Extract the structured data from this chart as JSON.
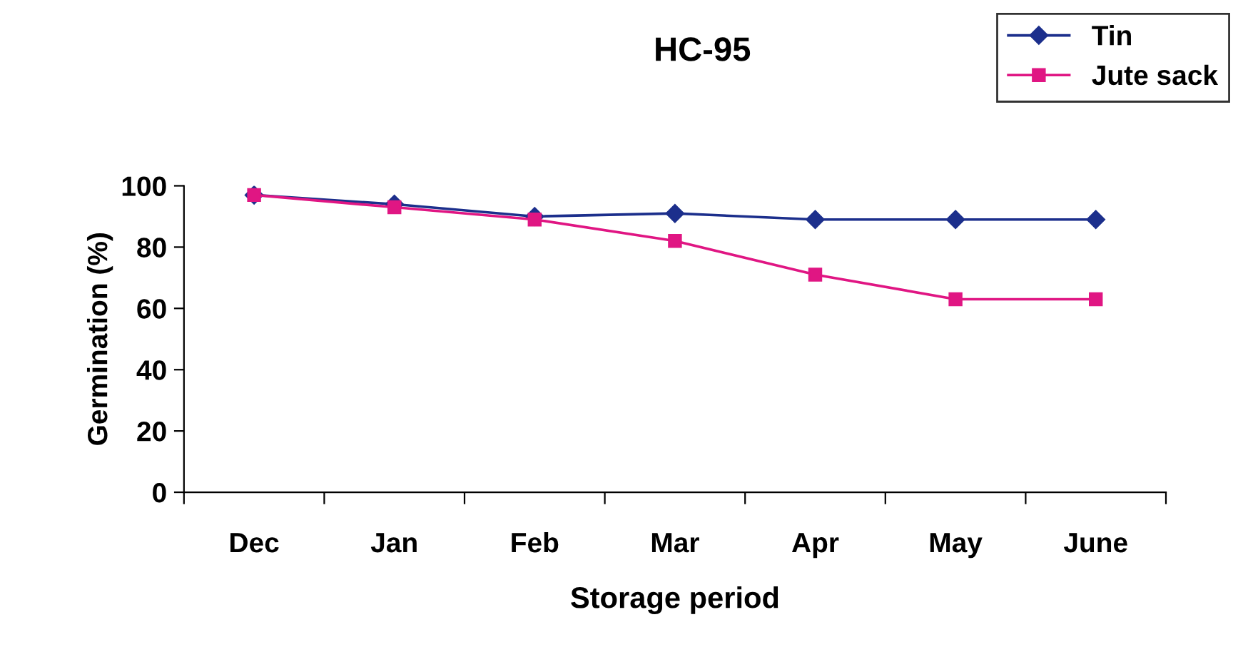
{
  "chart_data": {
    "type": "line",
    "title": "HC-95",
    "xlabel": "Storage period",
    "ylabel": "Germination (%)",
    "categories": [
      "Dec",
      "Jan",
      "Feb",
      "Mar",
      "Apr",
      "May",
      "June"
    ],
    "series": [
      {
        "name": "Tin",
        "color": "#1c2f8c",
        "marker": "diamond",
        "values": [
          97,
          94,
          90,
          91,
          89,
          89,
          89
        ]
      },
      {
        "name": "Jute sack",
        "color": "#e01683",
        "marker": "square",
        "values": [
          97,
          93,
          89,
          82,
          71,
          63,
          63
        ]
      }
    ],
    "ylim": [
      0,
      100
    ],
    "yticks": [
      0,
      20,
      40,
      60,
      80,
      100
    ],
    "grid": false,
    "legend": "top right",
    "line_style": "solid"
  }
}
